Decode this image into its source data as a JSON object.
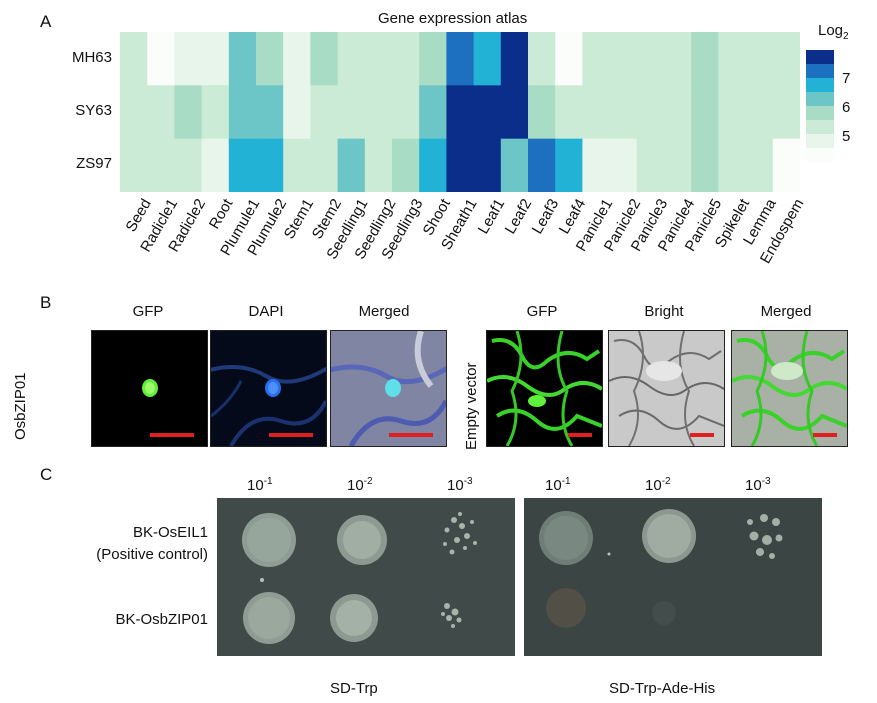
{
  "panelA": {
    "letter": "A",
    "title": "Gene expression atlas",
    "legend": {
      "title": "Log",
      "title_sub": "2",
      "ticks": [
        "7",
        "6",
        "5"
      ],
      "colors": [
        "#0b2e8a",
        "#1d6fc0",
        "#21b2d6",
        "#6cc5c6",
        "#a8dcc4",
        "#ccebd6",
        "#e8f5ea",
        "#fbfdfb"
      ]
    },
    "rows": [
      "MH63",
      "SY63",
      "ZS97"
    ],
    "columns": [
      "Seed",
      "Radicle1",
      "Radicle2",
      "Root",
      "Plumule1",
      "Plumule2",
      "Stem1",
      "Stem2",
      "Seedling1",
      "Seedling2",
      "Seedling3",
      "Shoot",
      "Sheath1",
      "Leaf1",
      "Leaf2",
      "Leaf3",
      "Leaf4",
      "Panicle1",
      "Panicle2",
      "Panicle3",
      "Panicle4",
      "Panicle5",
      "Spikelet",
      "Lemma",
      "Endospem"
    ],
    "chart_data": {
      "type": "heatmap",
      "title": "Gene expression atlas",
      "rows": [
        "MH63",
        "SY63",
        "ZS97"
      ],
      "columns": [
        "Seed",
        "Radicle1",
        "Radicle2",
        "Root",
        "Plumule1",
        "Plumule2",
        "Stem1",
        "Stem2",
        "Seedling1",
        "Seedling2",
        "Seedling3",
        "Shoot",
        "Sheath1",
        "Leaf1",
        "Leaf2",
        "Leaf3",
        "Leaf4",
        "Panicle1",
        "Panicle2",
        "Panicle3",
        "Panicle4",
        "Panicle5",
        "Spikelet",
        "Lemma",
        "Endospem"
      ],
      "values": [
        [
          5.0,
          4.2,
          4.8,
          4.8,
          6.4,
          5.6,
          4.8,
          5.8,
          5.2,
          5.1,
          5.1,
          5.7,
          7.4,
          7.0,
          8.0,
          5.1,
          4.2,
          4.9,
          4.9,
          4.9,
          4.9,
          5.8,
          4.9,
          4.9,
          4.9
        ],
        [
          4.9,
          5.2,
          5.6,
          5.1,
          6.2,
          6.1,
          4.8,
          5.1,
          5.1,
          5.1,
          5.1,
          6.2,
          7.9,
          7.9,
          8.0,
          5.5,
          5.2,
          4.9,
          4.9,
          4.9,
          4.9,
          5.6,
          5.1,
          4.9,
          4.9
        ],
        [
          4.9,
          5.2,
          5.2,
          4.8,
          7.0,
          7.0,
          5.0,
          5.3,
          6.2,
          5.4,
          5.6,
          7.0,
          8.0,
          8.0,
          6.2,
          7.4,
          7.0,
          4.5,
          4.5,
          5.0,
          5.0,
          5.6,
          5.0,
          5.0,
          4.2
        ]
      ],
      "legend_title": "Log2",
      "legend_ticks": [
        7,
        6,
        5
      ],
      "legend_placement": "right"
    }
  },
  "panelB": {
    "letter": "B",
    "left": {
      "row_label": "OsbZIP01",
      "channels": [
        "GFP",
        "DAPI",
        "Merged"
      ]
    },
    "right": {
      "row_label": "Empty vector",
      "channels": [
        "GFP",
        "Bright",
        "Merged"
      ]
    },
    "scalebar_color": "#e02020"
  },
  "panelC": {
    "letter": "C",
    "dilutions": [
      {
        "base": "10",
        "exp": "-1"
      },
      {
        "base": "10",
        "exp": "-2"
      },
      {
        "base": "10",
        "exp": "-3"
      },
      {
        "base": "10",
        "exp": "-1"
      },
      {
        "base": "10",
        "exp": "-2"
      },
      {
        "base": "10",
        "exp": "-3"
      }
    ],
    "strains": [
      {
        "line1": "BK-OsEIL1",
        "line2": "(Positive control)"
      },
      {
        "line1": "BK-OsbZIP01",
        "line2": ""
      }
    ],
    "media": [
      "SD-Trp",
      "SD-Trp-Ade-His"
    ],
    "growth": {
      "sd_trp": [
        [
          "full",
          "full",
          "sparse"
        ],
        [
          "full",
          "full",
          "sparse"
        ]
      ],
      "sd_trp_ade_his": [
        [
          "full",
          "full",
          "colonies"
        ],
        [
          "faint",
          "none",
          "none"
        ]
      ]
    }
  }
}
